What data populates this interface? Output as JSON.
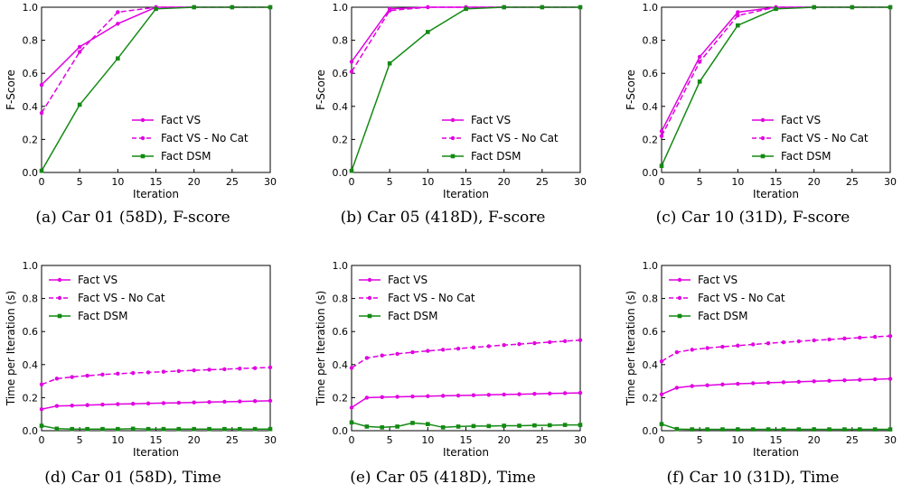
{
  "colors": {
    "fact_vs": "#e100e1",
    "fact_dsm": "#138a13",
    "axis": "#000000"
  },
  "legend": [
    {
      "name": "Fact VS",
      "color": "#e100e1",
      "dash": "solid",
      "marker": "circle"
    },
    {
      "name": "Fact VS - No Cat",
      "color": "#e100e1",
      "dash": "dashed",
      "marker": "circle"
    },
    {
      "name": "Fact DSM",
      "color": "#138a13",
      "dash": "solid",
      "marker": "square"
    }
  ],
  "chart_data": [
    {
      "type": "line",
      "caption": "(a)  Car 01 (58D), F-score",
      "xlabel": "Iteration",
      "ylabel": "F-Score",
      "xlim": [
        0,
        30
      ],
      "ylim": [
        0,
        1.0
      ],
      "xticks": [
        "0",
        "5",
        "10",
        "15",
        "20",
        "25",
        "30"
      ],
      "yticks": [
        "0.0",
        "0.2",
        "0.4",
        "0.6",
        "0.8",
        "1.0"
      ],
      "legend_position": "lower-right",
      "series": [
        {
          "name": "Fact VS",
          "x": [
            0,
            5,
            10,
            15,
            20,
            25,
            30
          ],
          "y": [
            0.53,
            0.76,
            0.9,
            1.0,
            1.0,
            1.0,
            1.0
          ]
        },
        {
          "name": "Fact VS - No Cat",
          "x": [
            0,
            5,
            10,
            15,
            20,
            25,
            30
          ],
          "y": [
            0.36,
            0.73,
            0.97,
            1.0,
            1.0,
            1.0,
            1.0
          ]
        },
        {
          "name": "Fact DSM",
          "x": [
            0,
            5,
            10,
            15,
            20,
            25,
            30
          ],
          "y": [
            0.01,
            0.41,
            0.69,
            0.99,
            1.0,
            1.0,
            1.0
          ]
        }
      ]
    },
    {
      "type": "line",
      "caption": "(b)  Car 05 (418D), F-score",
      "xlabel": "Iteration",
      "ylabel": "F-Score",
      "xlim": [
        0,
        30
      ],
      "ylim": [
        0,
        1.0
      ],
      "xticks": [
        "0",
        "5",
        "10",
        "15",
        "20",
        "25",
        "30"
      ],
      "yticks": [
        "0.0",
        "0.2",
        "0.4",
        "0.6",
        "0.8",
        "1.0"
      ],
      "legend_position": "lower-right",
      "series": [
        {
          "name": "Fact VS",
          "x": [
            0,
            5,
            10,
            15,
            20,
            25,
            30
          ],
          "y": [
            0.67,
            0.99,
            1.0,
            1.0,
            1.0,
            1.0,
            1.0
          ]
        },
        {
          "name": "Fact VS - No Cat",
          "x": [
            0,
            5,
            10,
            15,
            20,
            25,
            30
          ],
          "y": [
            0.61,
            0.98,
            1.0,
            1.0,
            1.0,
            1.0,
            1.0
          ]
        },
        {
          "name": "Fact DSM",
          "x": [
            0,
            5,
            10,
            15,
            20,
            25,
            30
          ],
          "y": [
            0.01,
            0.66,
            0.85,
            0.99,
            1.0,
            1.0,
            1.0
          ]
        }
      ]
    },
    {
      "type": "line",
      "caption": "(c)  Car 10 (31D), F-score",
      "xlabel": "Iteration",
      "ylabel": "F-Score",
      "xlim": [
        0,
        30
      ],
      "ylim": [
        0,
        1.0
      ],
      "xticks": [
        "0",
        "5",
        "10",
        "15",
        "20",
        "25",
        "30"
      ],
      "yticks": [
        "0.0",
        "0.2",
        "0.4",
        "0.6",
        "0.8",
        "1.0"
      ],
      "legend_position": "lower-right",
      "series": [
        {
          "name": "Fact VS",
          "x": [
            0,
            5,
            10,
            15,
            20,
            25,
            30
          ],
          "y": [
            0.25,
            0.7,
            0.97,
            1.0,
            1.0,
            1.0,
            1.0
          ]
        },
        {
          "name": "Fact VS - No Cat",
          "x": [
            0,
            5,
            10,
            15,
            20,
            25,
            30
          ],
          "y": [
            0.22,
            0.67,
            0.95,
            1.0,
            1.0,
            1.0,
            1.0
          ]
        },
        {
          "name": "Fact DSM",
          "x": [
            0,
            5,
            10,
            15,
            20,
            25,
            30
          ],
          "y": [
            0.04,
            0.55,
            0.89,
            0.99,
            1.0,
            1.0,
            1.0
          ]
        }
      ]
    },
    {
      "type": "line",
      "caption": "(d)  Car 01 (58D), Time",
      "xlabel": "Iteration",
      "ylabel": "Time per Iteration (s)",
      "xlim": [
        0,
        30
      ],
      "ylim": [
        0,
        1.0
      ],
      "xticks": [
        "0",
        "5",
        "10",
        "15",
        "20",
        "25",
        "30"
      ],
      "yticks": [
        "0.0",
        "0.2",
        "0.4",
        "0.6",
        "0.8",
        "1.0"
      ],
      "legend_position": "upper-left",
      "series": [
        {
          "name": "Fact VS",
          "x": [
            0,
            2,
            4,
            6,
            8,
            10,
            12,
            14,
            16,
            18,
            20,
            22,
            24,
            26,
            28,
            30
          ],
          "y": [
            0.13,
            0.15,
            0.152,
            0.155,
            0.158,
            0.161,
            0.163,
            0.165,
            0.167,
            0.169,
            0.171,
            0.173,
            0.175,
            0.177,
            0.179,
            0.181
          ]
        },
        {
          "name": "Fact VS - No Cat",
          "x": [
            0,
            2,
            4,
            6,
            8,
            10,
            12,
            14,
            16,
            18,
            20,
            22,
            24,
            26,
            28,
            30
          ],
          "y": [
            0.28,
            0.315,
            0.325,
            0.333,
            0.34,
            0.345,
            0.349,
            0.353,
            0.357,
            0.361,
            0.365,
            0.369,
            0.372,
            0.376,
            0.379,
            0.383
          ]
        },
        {
          "name": "Fact DSM",
          "x": [
            0,
            2,
            4,
            6,
            8,
            10,
            12,
            14,
            16,
            18,
            20,
            22,
            24,
            26,
            28,
            30
          ],
          "y": [
            0.03,
            0.012,
            0.01,
            0.01,
            0.01,
            0.01,
            0.012,
            0.01,
            0.01,
            0.01,
            0.01,
            0.01,
            0.01,
            0.01,
            0.01,
            0.01
          ]
        }
      ]
    },
    {
      "type": "line",
      "caption": "(e)  Car 05 (418D), Time",
      "xlabel": "Iteration",
      "ylabel": "Time per Iteration (s)",
      "xlim": [
        0,
        30
      ],
      "ylim": [
        0,
        1.0
      ],
      "xticks": [
        "0",
        "5",
        "10",
        "15",
        "20",
        "25",
        "30"
      ],
      "yticks": [
        "0.0",
        "0.2",
        "0.4",
        "0.6",
        "0.8",
        "1.0"
      ],
      "legend_position": "upper-left",
      "series": [
        {
          "name": "Fact VS",
          "x": [
            0,
            2,
            4,
            6,
            8,
            10,
            12,
            14,
            16,
            18,
            20,
            22,
            24,
            26,
            28,
            30
          ],
          "y": [
            0.14,
            0.2,
            0.203,
            0.205,
            0.207,
            0.209,
            0.211,
            0.213,
            0.215,
            0.217,
            0.219,
            0.221,
            0.223,
            0.225,
            0.227,
            0.229
          ]
        },
        {
          "name": "Fact VS - No Cat",
          "x": [
            0,
            2,
            4,
            6,
            8,
            10,
            12,
            14,
            16,
            18,
            20,
            22,
            24,
            26,
            28,
            30
          ],
          "y": [
            0.38,
            0.44,
            0.455,
            0.465,
            0.475,
            0.483,
            0.49,
            0.497,
            0.504,
            0.511,
            0.518,
            0.524,
            0.53,
            0.536,
            0.542,
            0.548
          ]
        },
        {
          "name": "Fact DSM",
          "x": [
            0,
            2,
            4,
            6,
            8,
            10,
            12,
            14,
            16,
            18,
            20,
            22,
            24,
            26,
            28,
            30
          ],
          "y": [
            0.05,
            0.025,
            0.02,
            0.025,
            0.047,
            0.04,
            0.02,
            0.025,
            0.028,
            0.028,
            0.03,
            0.03,
            0.032,
            0.033,
            0.035,
            0.035
          ]
        }
      ]
    },
    {
      "type": "line",
      "caption": "(f)  Car 10 (31D), Time",
      "xlabel": "Iteration",
      "ylabel": "Time per Iteration (s)",
      "xlim": [
        0,
        30
      ],
      "ylim": [
        0,
        1.0
      ],
      "xticks": [
        "0",
        "5",
        "10",
        "15",
        "20",
        "25",
        "30"
      ],
      "yticks": [
        "0.0",
        "0.2",
        "0.4",
        "0.6",
        "0.8",
        "1.0"
      ],
      "legend_position": "upper-left",
      "series": [
        {
          "name": "Fact VS",
          "x": [
            0,
            2,
            4,
            6,
            8,
            10,
            12,
            14,
            16,
            18,
            20,
            22,
            24,
            26,
            28,
            30
          ],
          "y": [
            0.22,
            0.26,
            0.27,
            0.275,
            0.28,
            0.284,
            0.287,
            0.29,
            0.293,
            0.296,
            0.299,
            0.302,
            0.305,
            0.308,
            0.311,
            0.314
          ]
        },
        {
          "name": "Fact VS - No Cat",
          "x": [
            0,
            2,
            4,
            6,
            8,
            10,
            12,
            14,
            16,
            18,
            20,
            22,
            24,
            26,
            28,
            30
          ],
          "y": [
            0.42,
            0.475,
            0.49,
            0.5,
            0.508,
            0.515,
            0.522,
            0.529,
            0.535,
            0.541,
            0.547,
            0.552,
            0.558,
            0.563,
            0.568,
            0.573
          ]
        },
        {
          "name": "Fact DSM",
          "x": [
            0,
            2,
            4,
            6,
            8,
            10,
            12,
            14,
            16,
            18,
            20,
            22,
            24,
            26,
            28,
            30
          ],
          "y": [
            0.04,
            0.01,
            0.008,
            0.008,
            0.008,
            0.008,
            0.008,
            0.008,
            0.008,
            0.008,
            0.008,
            0.008,
            0.008,
            0.008,
            0.008,
            0.008
          ]
        }
      ]
    }
  ]
}
